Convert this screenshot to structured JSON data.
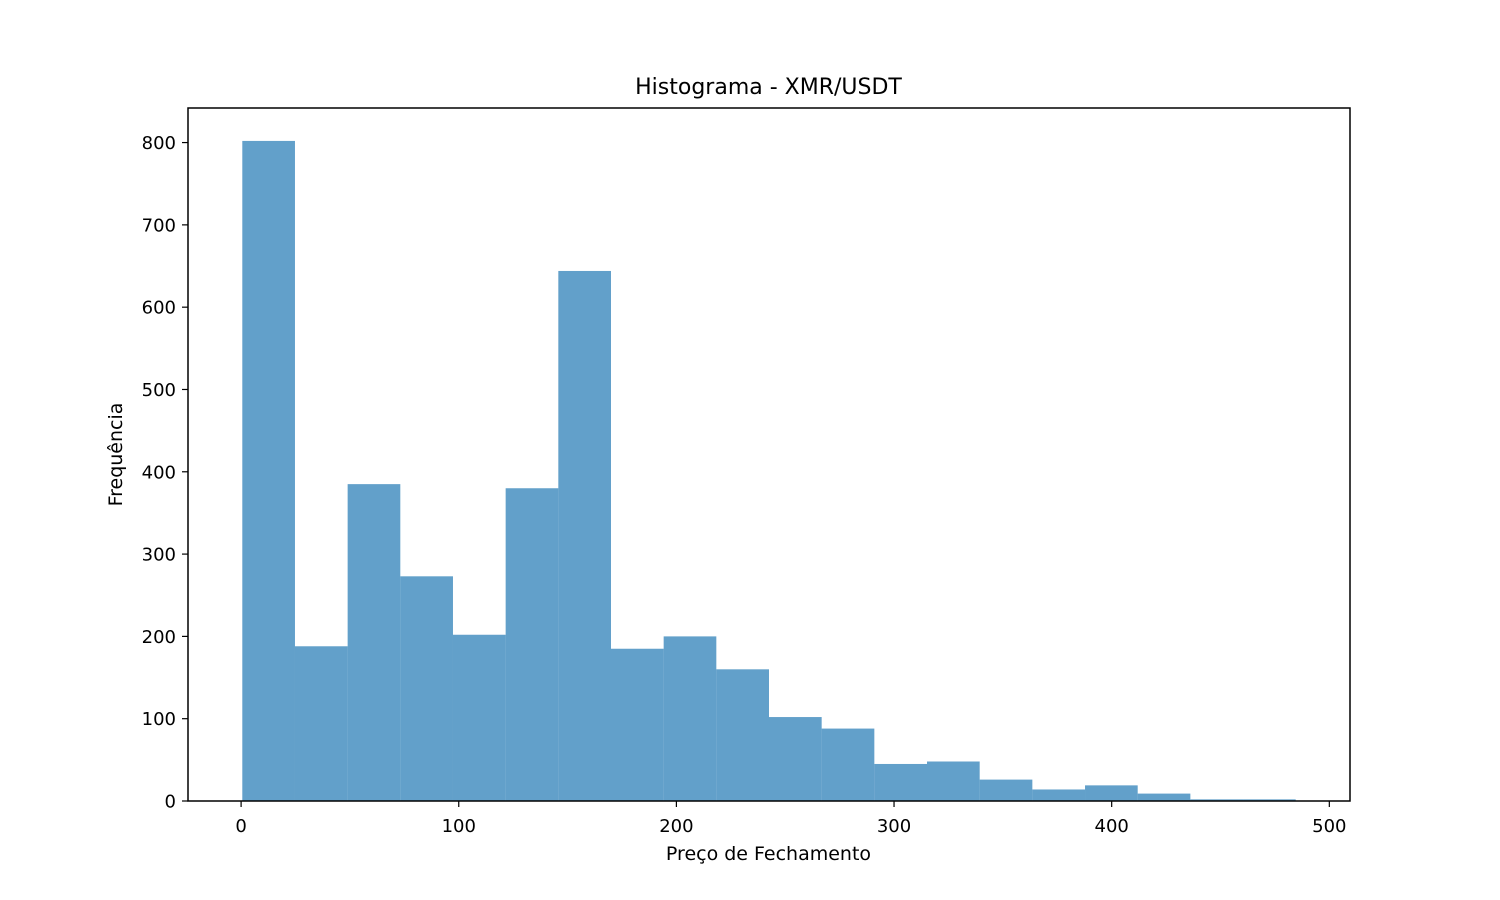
{
  "chart_data": {
    "type": "bar",
    "title": "Histograma - XMR/USDT",
    "xlabel": "Preço de Fechamento",
    "ylabel": "Frequência",
    "bin_edges": [
      0.55,
      24.75,
      48.95,
      73.15,
      97.35,
      121.55,
      145.75,
      169.95,
      194.15,
      218.35,
      242.55,
      266.75,
      290.95,
      315.15,
      339.35,
      363.55,
      387.75,
      411.95,
      436.15,
      460.35,
      484.55
    ],
    "values": [
      802,
      188,
      385,
      273,
      202,
      380,
      644,
      185,
      200,
      160,
      102,
      88,
      45,
      48,
      26,
      14,
      19,
      9,
      2,
      2
    ],
    "xlim": [
      -24.4,
      509.5
    ],
    "ylim": [
      0,
      842
    ],
    "xticks": [
      0,
      100,
      200,
      300,
      400,
      500
    ],
    "yticks": [
      0,
      100,
      200,
      300,
      400,
      500,
      600,
      700,
      800
    ],
    "grid": false,
    "bar_color": "#1f77b4",
    "bar_opacity": 0.7
  }
}
